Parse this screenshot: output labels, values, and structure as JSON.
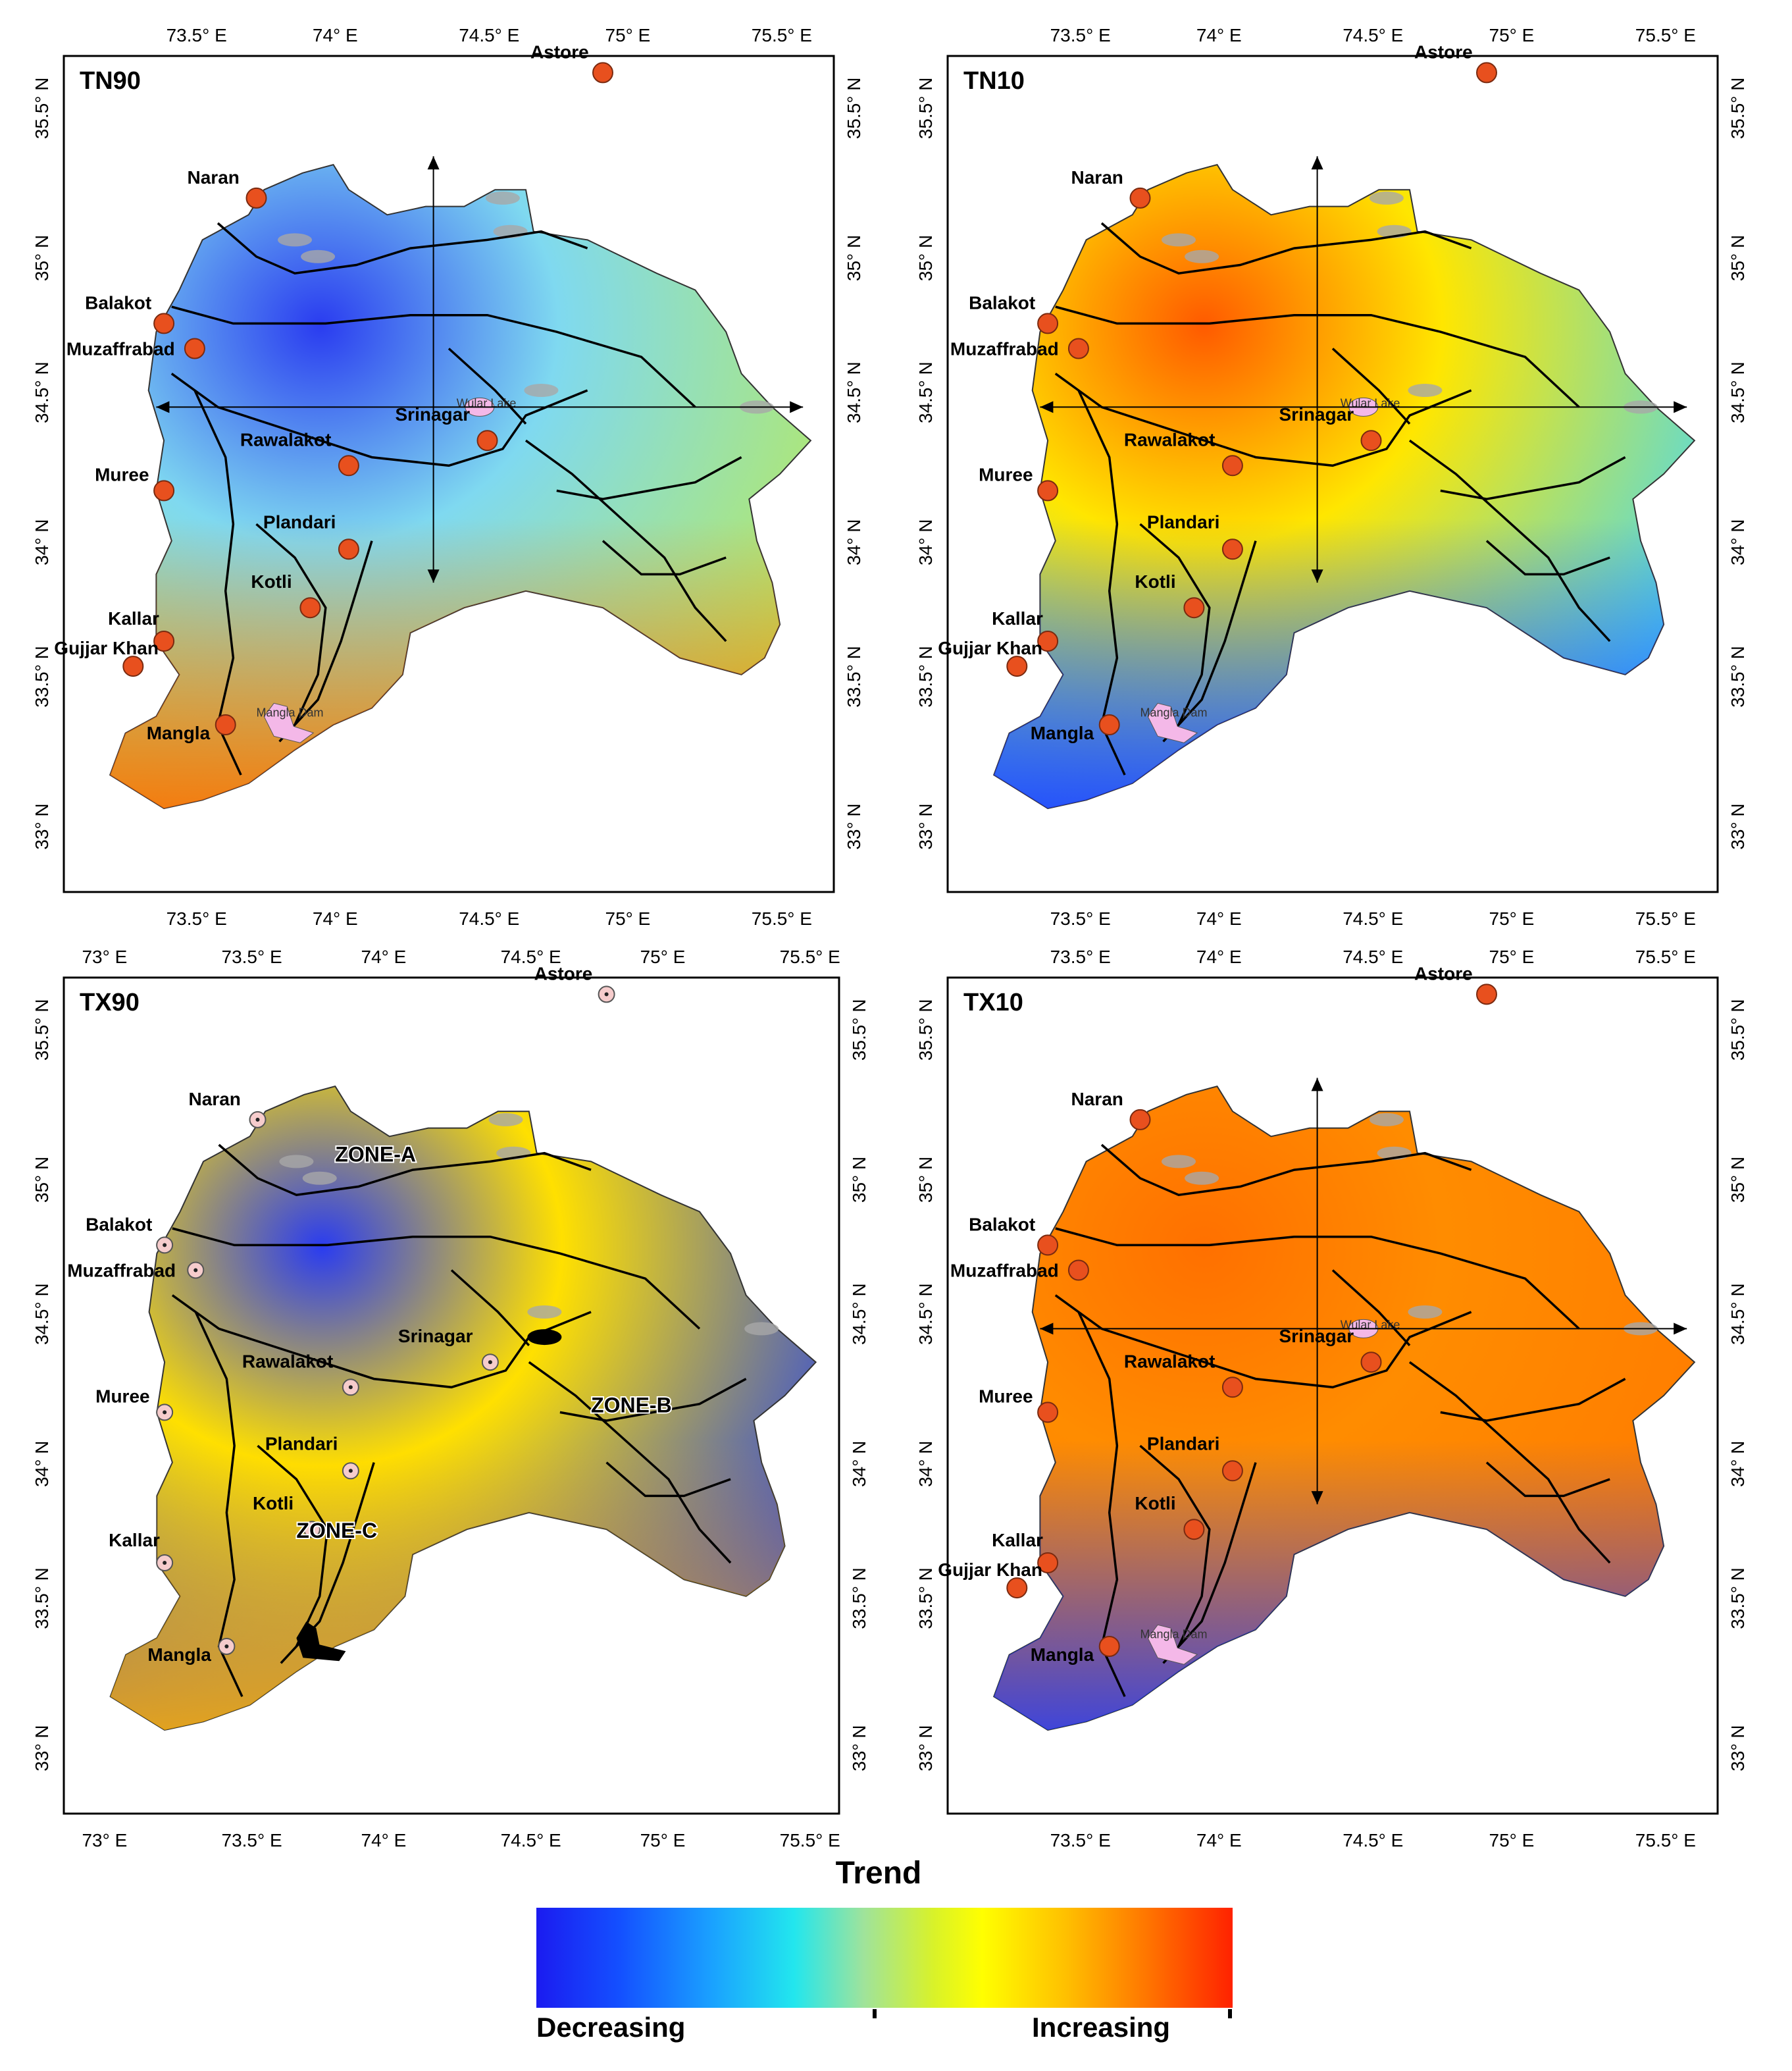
{
  "legend": {
    "title": "Trend",
    "low_label": "Decreasing",
    "high_label": "Increasing"
  },
  "panels": [
    {
      "id": "tn90",
      "title": "TN90",
      "top_ticks": [
        "73.5° E",
        "74° E",
        "74.5° E",
        "75° E",
        "75.5° E"
      ],
      "bottom_ticks": [
        "73.5° E",
        "74° E",
        "74.5° E",
        "75° E",
        "75.5° E"
      ],
      "lat_ticks": [
        "35.5° N",
        "35° N",
        "34.5° N",
        "34° N",
        "33.5° N",
        "33° N"
      ],
      "stations": [
        "Astore",
        "Naran",
        "Balakot",
        "Muzaffrabad",
        "Rawalakot",
        "Srinagar",
        "Muree",
        "Plandari",
        "Kotli",
        "Kallar",
        "Gujjar Khan",
        "Mangla"
      ],
      "water_labels": [
        "Wular Lake",
        "Mangla Dam"
      ],
      "zones": [],
      "colors": {
        "nw": "#2a3cf0",
        "center": "#7fd9f0",
        "south": "#ff6a00",
        "east": "#b9ea5a"
      }
    },
    {
      "id": "tn10",
      "title": "TN10",
      "top_ticks": [
        "73.5° E",
        "74° E",
        "74.5° E",
        "75° E",
        "75.5° E"
      ],
      "bottom_ticks": [
        "73.5° E",
        "74° E",
        "74.5° E",
        "75° E",
        "75.5° E"
      ],
      "lat_ticks": [
        "35.5° N",
        "35° N",
        "34.5° N",
        "34° N",
        "33.5° N",
        "33° N"
      ],
      "stations": [
        "Astore",
        "Naran",
        "Balakot",
        "Muzaffrabad",
        "Rawalakot",
        "Srinagar",
        "Muree",
        "Plandari",
        "Kotli",
        "Kallar",
        "Gujjar Khan",
        "Mangla"
      ],
      "water_labels": [
        "Wular Lake",
        "Mangla Dam"
      ],
      "zones": [],
      "colors": {
        "nw": "#ff5a00",
        "center": "#ffe600",
        "south": "#1e3cff",
        "east": "#3fd8ff"
      }
    },
    {
      "id": "tx90",
      "title": "TX90",
      "top_ticks": [
        "73° E",
        "73.5° E",
        "74° E",
        "74.5° E",
        "75° E",
        "75.5° E"
      ],
      "bottom_ticks": [
        "73° E",
        "73.5° E",
        "74° E",
        "74.5° E",
        "75° E",
        "75.5° E"
      ],
      "lat_ticks": [
        "35.5° N",
        "35° N",
        "34.5° N",
        "34° N",
        "33.5° N",
        "33° N"
      ],
      "stations": [
        "Astore",
        "Naran",
        "Balakot",
        "Muzaffrabad",
        "Rawalakot",
        "Srinagar",
        "Muree",
        "Plandari",
        "Kotli",
        "Kallar",
        "Mangla"
      ],
      "water_labels": [],
      "zones": [
        "ZONE-A",
        "ZONE-B",
        "ZONE-C"
      ],
      "colors": {
        "nw": "#2a3cf0",
        "center": "#ffe000",
        "south": "#ffb000",
        "east": "#1e3cf0"
      }
    },
    {
      "id": "tx10",
      "title": "TX10",
      "top_ticks": [
        "73.5° E",
        "74° E",
        "74.5° E",
        "75° E",
        "75.5° E"
      ],
      "bottom_ticks": [
        "73.5° E",
        "74° E",
        "74.5° E",
        "75° E",
        "75.5° E"
      ],
      "lat_ticks": [
        "35.5° N",
        "35° N",
        "34.5° N",
        "34° N",
        "33.5° N",
        "33° N"
      ],
      "stations": [
        "Astore",
        "Naran",
        "Balakot",
        "Muzaffrabad",
        "Rawalakot",
        "Srinagar",
        "Muree",
        "Plandari",
        "Kotli",
        "Kallar",
        "Gujjar Khan",
        "Mangla"
      ],
      "water_labels": [
        "Wular Lake",
        "Mangla Dam"
      ],
      "zones": [],
      "colors": {
        "nw": "#ff7000",
        "center": "#ff8c00",
        "south": "#1e3cff",
        "east": "#ff7a00"
      }
    }
  ]
}
